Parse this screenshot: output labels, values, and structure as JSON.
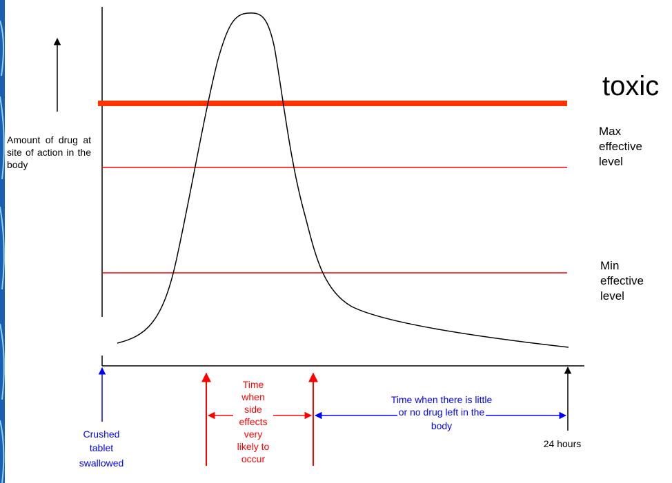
{
  "y_axis_label": "Amount of drug at site of action in the body",
  "levels": {
    "toxic": "toxic",
    "max_effective": [
      "Max",
      "effective",
      "level"
    ],
    "min_effective": [
      "Min",
      "effective",
      "level"
    ]
  },
  "annotations": {
    "crushed_tablet": [
      "Crushed",
      "tablet",
      "swallowed"
    ],
    "side_effects": [
      "Time",
      "when",
      "side",
      "effects",
      "very",
      "likely to",
      "occur"
    ],
    "little_drug": [
      "Time when there is little",
      "or no drug left in the",
      "body"
    ],
    "end_time": "24 hours"
  },
  "colors": {
    "toxic_line": "#ff3300",
    "level_lines": "#ff0000",
    "curve": "#000000",
    "blue_annotation": "#0000ff",
    "red_annotation": "#ff0000",
    "left_edge": "#1a5fb4"
  }
}
